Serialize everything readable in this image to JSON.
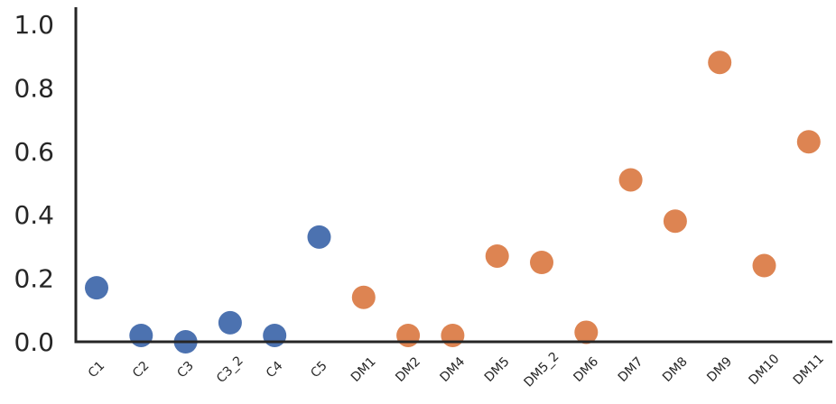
{
  "chart_data": {
    "type": "scatter",
    "title": "",
    "xlabel": "",
    "ylabel": "",
    "ylim": [
      0.0,
      1.05
    ],
    "yticks": [
      "0.0",
      "0.2",
      "0.4",
      "0.6",
      "0.8",
      "1.0"
    ],
    "grid": false,
    "categories": [
      "C1",
      "C2",
      "C3",
      "C3_2",
      "C4",
      "C5",
      "DM1",
      "DM2",
      "DM4",
      "DM5",
      "DM5_2",
      "DM6",
      "DM7",
      "DM8",
      "DM9",
      "DM10",
      "DM11"
    ],
    "series": [
      {
        "color": "#4c72b0",
        "points": [
          {
            "x": "C1",
            "y": 0.17
          },
          {
            "x": "C2",
            "y": 0.02
          },
          {
            "x": "C3",
            "y": 0.0
          },
          {
            "x": "C3_2",
            "y": 0.06
          },
          {
            "x": "C4",
            "y": 0.02
          },
          {
            "x": "C5",
            "y": 0.33
          }
        ]
      },
      {
        "color": "#dd8452",
        "points": [
          {
            "x": "DM1",
            "y": 0.14
          },
          {
            "x": "DM2",
            "y": 0.02
          },
          {
            "x": "DM4",
            "y": 0.02
          },
          {
            "x": "DM5",
            "y": 0.27
          },
          {
            "x": "DM5_2",
            "y": 0.25
          },
          {
            "x": "DM6",
            "y": 0.03
          },
          {
            "x": "DM7",
            "y": 0.51
          },
          {
            "x": "DM8",
            "y": 0.38
          },
          {
            "x": "DM9",
            "y": 0.88
          },
          {
            "x": "DM10",
            "y": 0.24
          },
          {
            "x": "DM11",
            "y": 0.63
          }
        ]
      }
    ]
  }
}
